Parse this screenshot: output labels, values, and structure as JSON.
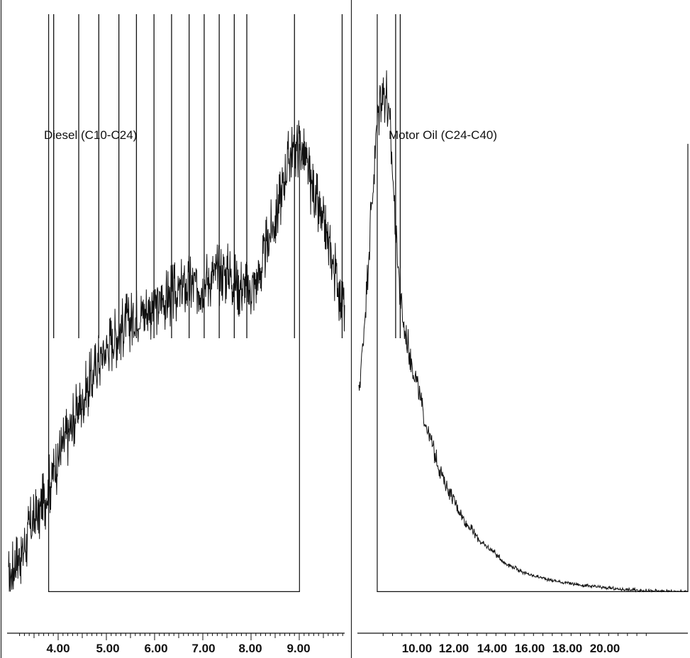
{
  "chart_data": [
    {
      "type": "line",
      "title": "",
      "xlabel": "",
      "ylabel": "",
      "annotation": "Diesel (C10-C24)",
      "grid": false,
      "xlim": [
        3.2,
        9.9
      ],
      "ylim": [
        0,
        100
      ],
      "tick_labels": [
        "4.00",
        "5.00",
        "6.00",
        "7.00",
        "8.00",
        "9.00"
      ],
      "tick_values": [
        4.0,
        5.0,
        6.0,
        7.0,
        8.0,
        9.0
      ],
      "integration_window": [
        4.0,
        9.0
      ],
      "baseline": 2,
      "series": [
        {
          "x": [
            3.2,
            3.3,
            3.4,
            3.5,
            3.6,
            3.7,
            3.8,
            3.9,
            4.0,
            4.1,
            4.2,
            4.3,
            4.4,
            4.5,
            4.6,
            4.7,
            4.8,
            4.9,
            5.0,
            5.2,
            5.4,
            5.6,
            5.8,
            6.0,
            6.2,
            6.4,
            6.6,
            6.8,
            7.0,
            7.2,
            7.4,
            7.6,
            7.8,
            8.0,
            8.2,
            8.4,
            8.6,
            8.8,
            9.0,
            9.2,
            9.4,
            9.6,
            9.8,
            9.9
          ],
          "values": [
            4,
            6,
            8,
            9,
            12,
            14,
            15,
            17,
            20,
            22,
            25,
            27,
            29,
            31,
            33,
            35,
            37,
            39,
            41,
            44,
            46,
            48,
            49,
            50,
            51,
            52,
            53,
            54,
            54,
            55,
            56,
            56,
            54,
            53,
            56,
            62,
            68,
            76,
            78,
            72,
            66,
            60,
            53,
            51
          ]
        }
      ],
      "peaks": [
        {
          "x": 4.1,
          "y": 100
        },
        {
          "x": 4.6,
          "y": 100
        },
        {
          "x": 5.0,
          "y": 100
        },
        {
          "x": 5.4,
          "y": 100
        },
        {
          "x": 5.75,
          "y": 100
        },
        {
          "x": 6.1,
          "y": 100
        },
        {
          "x": 6.45,
          "y": 100
        },
        {
          "x": 6.8,
          "y": 100
        },
        {
          "x": 7.1,
          "y": 100
        },
        {
          "x": 7.4,
          "y": 100
        },
        {
          "x": 7.7,
          "y": 100
        },
        {
          "x": 7.95,
          "y": 100
        },
        {
          "x": 8.9,
          "y": 100
        },
        {
          "x": 9.85,
          "y": 100
        }
      ]
    },
    {
      "type": "line",
      "title": "",
      "xlabel": "",
      "ylabel": "",
      "annotation": "Motor Oil (C24-C40)",
      "grid": false,
      "xlim": [
        8.2,
        22.5
      ],
      "ylim": [
        0,
        100
      ],
      "tick_labels": [
        "10.00",
        "12.00",
        "14.00",
        "16.00",
        "18.00",
        "20.00"
      ],
      "tick_values": [
        10.0,
        12.0,
        14.0,
        16.0,
        18.0,
        20.0
      ],
      "integration_window": [
        9.0,
        22.5
      ],
      "baseline": 2,
      "series": [
        {
          "x": [
            8.2,
            8.4,
            8.6,
            8.8,
            9.0,
            9.2,
            9.4,
            9.6,
            9.8,
            10.0,
            10.2,
            10.5,
            10.8,
            11.0,
            11.3,
            11.6,
            12.0,
            12.4,
            12.8,
            13.2,
            13.6,
            14.0,
            14.5,
            15.0,
            15.5,
            16.0,
            16.5,
            17.0,
            18.0,
            19.0,
            20.0,
            21.0,
            22.0,
            22.5
          ],
          "values": [
            36,
            45,
            58,
            70,
            82,
            88,
            86,
            78,
            64,
            52,
            46,
            41,
            36,
            32,
            28,
            24,
            20,
            17,
            14,
            12,
            10,
            9,
            7,
            6,
            5,
            4.5,
            4,
            3.6,
            3,
            2.6,
            2.3,
            2.1,
            2,
            2
          ]
        }
      ],
      "peaks": [
        {
          "x": 9.8,
          "y": 100
        },
        {
          "x": 10.0,
          "y": 100
        }
      ]
    }
  ]
}
